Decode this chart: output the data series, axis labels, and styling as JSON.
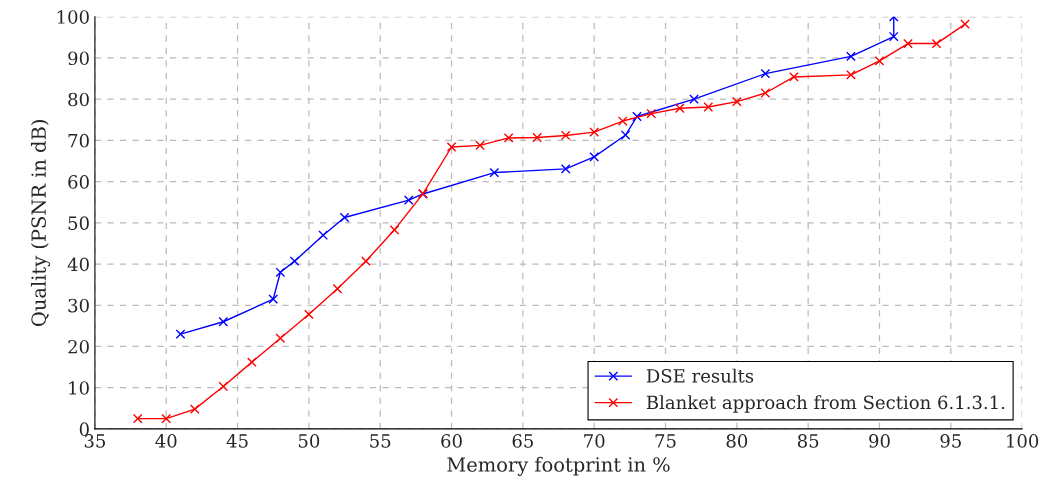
{
  "chart_data": {
    "type": "line",
    "xlabel": "Memory footprint in %",
    "ylabel": "Quality (PSNR in dB)",
    "xlim": [
      35,
      100
    ],
    "xticks": [
      35,
      40,
      45,
      50,
      55,
      60,
      65,
      70,
      75,
      80,
      85,
      90,
      95,
      100
    ],
    "ylim": [
      0,
      100
    ],
    "yticks": [
      0,
      10,
      20,
      30,
      40,
      50,
      60,
      70,
      80,
      90,
      100
    ],
    "grid": true,
    "legend": "bottom right",
    "marker": "cross",
    "line_style": "solid",
    "series": [
      {
        "name": "DSE results",
        "color": "#0000ff",
        "x": [
          41,
          44,
          47.5,
          48,
          49,
          51,
          52.5,
          57,
          58,
          63,
          68,
          70,
          72.2,
          73,
          77,
          82,
          88,
          91,
          91
        ],
        "values": [
          23,
          26,
          31.5,
          38,
          40.7,
          47,
          51.3,
          55.5,
          57,
          62.2,
          63.1,
          66,
          71.3,
          75.8,
          80,
          86.2,
          90.4,
          95.2,
          100
        ]
      },
      {
        "name": "Blanket approach from Section 6.1.3.1.",
        "color": "#ff0000",
        "x": [
          38,
          40,
          42,
          44,
          46,
          48,
          50,
          52,
          54,
          56,
          58,
          60,
          62,
          64,
          66,
          68,
          70,
          72,
          74,
          76,
          78,
          80,
          82,
          84,
          88,
          90,
          92,
          94,
          96
        ],
        "values": [
          2.5,
          2.5,
          4.8,
          10.3,
          16.2,
          22,
          27.8,
          34,
          40.7,
          48.3,
          57.1,
          68.4,
          68.8,
          70.6,
          70.7,
          71.2,
          72,
          74.7,
          76.5,
          77.8,
          78.1,
          79.4,
          81.5,
          85.4,
          85.9,
          89.3,
          93.5,
          93.5,
          98.2
        ]
      }
    ]
  }
}
